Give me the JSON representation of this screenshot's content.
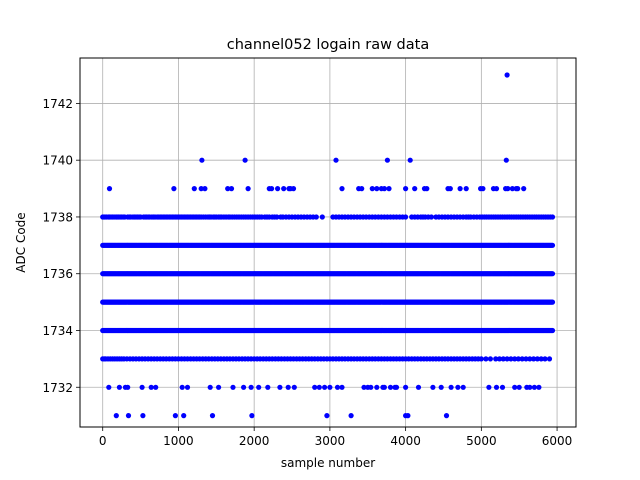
{
  "chart_data": {
    "type": "scatter",
    "title": "channel052 logain raw data",
    "xlabel": "sample number",
    "ylabel": "ADC Code",
    "xlim": [
      -300,
      6250
    ],
    "ylim": [
      1730.6,
      1743.6
    ],
    "xticks": [
      0,
      1000,
      2000,
      3000,
      4000,
      5000,
      6000
    ],
    "yticks": [
      1732,
      1734,
      1736,
      1738,
      1740,
      1742
    ],
    "grid": true,
    "marker_color": "#0000ff",
    "dense_levels": {
      "x_range": [
        0,
        5940
      ],
      "levels": [
        1734,
        1735,
        1736,
        1737
      ]
    },
    "sparse_points": {
      "1738": [
        0,
        15,
        30,
        50,
        75,
        90,
        110,
        130,
        150,
        175,
        190,
        210,
        230,
        250,
        270,
        290,
        330,
        350,
        370,
        400,
        420,
        440,
        460,
        480,
        500,
        540,
        560,
        580,
        600,
        620,
        650,
        670,
        690,
        720,
        740,
        760,
        780,
        800,
        820,
        840,
        860,
        880,
        900,
        920,
        940,
        960,
        980,
        1000,
        1020,
        1040,
        1060,
        1080,
        1100,
        1120,
        1140,
        1160,
        1180,
        1200,
        1220,
        1240,
        1260,
        1280,
        1300,
        1330,
        1360,
        1390,
        1410,
        1430,
        1460,
        1480,
        1500,
        1530,
        1550,
        1570,
        1600,
        1630,
        1660,
        1680,
        1710,
        1740,
        1770,
        1800,
        1830,
        1860,
        1890,
        1920,
        1950,
        1980,
        2010,
        2040,
        2070,
        2100,
        2140,
        2170,
        2200,
        2240,
        2270,
        2300,
        2350,
        2380,
        2420,
        2460,
        2500,
        2540,
        2580,
        2620,
        2660,
        2700,
        2740,
        2780,
        2820,
        2900,
        3040,
        3080,
        3120,
        3160,
        3200,
        3240,
        3280,
        3320,
        3360,
        3400,
        3440,
        3480,
        3520,
        3560,
        3600,
        3640,
        3680,
        3720,
        3760,
        3800,
        3840,
        3880,
        3920,
        3960,
        4000,
        4080,
        4120,
        4160,
        4200,
        4230,
        4260,
        4300,
        4340,
        4400,
        4440,
        4480,
        4520,
        4560,
        4600,
        4640,
        4680,
        4720,
        4760,
        4800,
        4830,
        4860,
        4900,
        4940,
        4980,
        5010,
        5040,
        5070,
        5100,
        5130,
        5160,
        5190,
        5220,
        5250,
        5280,
        5310,
        5340,
        5370,
        5400,
        5430,
        5460,
        5490,
        5520,
        5550,
        5580,
        5610,
        5640,
        5670,
        5700,
        5730,
        5760,
        5790,
        5820,
        5850,
        5880,
        5910,
        5940
      ],
      "1733": [
        0,
        20,
        40,
        70,
        100,
        130,
        160,
        190,
        220,
        250,
        280,
        320,
        360,
        400,
        440,
        480,
        520,
        560,
        600,
        640,
        680,
        720,
        760,
        800,
        840,
        880,
        920,
        960,
        1000,
        1040,
        1080,
        1120,
        1160,
        1200,
        1240,
        1280,
        1320,
        1360,
        1400,
        1440,
        1480,
        1520,
        1560,
        1600,
        1640,
        1680,
        1720,
        1760,
        1800,
        1840,
        1880,
        1920,
        1960,
        2000,
        2040,
        2080,
        2120,
        2160,
        2200,
        2240,
        2280,
        2320,
        2360,
        2400,
        2440,
        2480,
        2520,
        2560,
        2600,
        2640,
        2680,
        2720,
        2760,
        2800,
        2840,
        2880,
        2920,
        2960,
        3000,
        3040,
        3080,
        3120,
        3160,
        3200,
        3240,
        3280,
        3320,
        3360,
        3400,
        3440,
        3480,
        3520,
        3560,
        3600,
        3640,
        3680,
        3720,
        3760,
        3800,
        3840,
        3880,
        3920,
        3960,
        4000,
        4040,
        4080,
        4120,
        4160,
        4200,
        4240,
        4280,
        4320,
        4360,
        4400,
        4440,
        4480,
        4520,
        4560,
        4600,
        4640,
        4680,
        4720,
        4760,
        4800,
        4840,
        4880,
        4920,
        4960,
        5000,
        5060,
        5120,
        5190,
        5240,
        5290,
        5340,
        5390,
        5440,
        5490,
        5540,
        5590,
        5640,
        5690,
        5740,
        5790,
        5840,
        5900
      ],
      "1739": [
        90,
        940,
        1210,
        1300,
        1350,
        1650,
        1700,
        1920,
        2200,
        2230,
        2310,
        2390,
        2460,
        2480,
        2520,
        3160,
        3380,
        3420,
        3560,
        3620,
        3680,
        3720,
        3780,
        4000,
        4120,
        4250,
        4280,
        4560,
        4590,
        4720,
        4800,
        4990,
        5020,
        5160,
        5200,
        5320,
        5350,
        5410,
        5460,
        5480,
        5560
      ],
      "1732": [
        80,
        220,
        300,
        330,
        520,
        640,
        700,
        1050,
        1120,
        1420,
        1530,
        1720,
        1860,
        1960,
        2060,
        2180,
        2340,
        2450,
        2530,
        2800,
        2860,
        2930,
        3000,
        3100,
        3160,
        3450,
        3500,
        3540,
        3620,
        3700,
        3720,
        3800,
        3860,
        3880,
        4000,
        4170,
        4360,
        4470,
        4600,
        4690,
        4760,
        5100,
        5200,
        5280,
        5440,
        5500,
        5600,
        5640,
        5700,
        5760
      ],
      "1740": [
        1310,
        1880,
        3080,
        3760,
        4060,
        5330
      ],
      "1731": [
        180,
        340,
        530,
        960,
        1070,
        1450,
        1970,
        2960,
        3280,
        4000,
        4030,
        4540
      ],
      "1743": [
        5340
      ]
    }
  }
}
